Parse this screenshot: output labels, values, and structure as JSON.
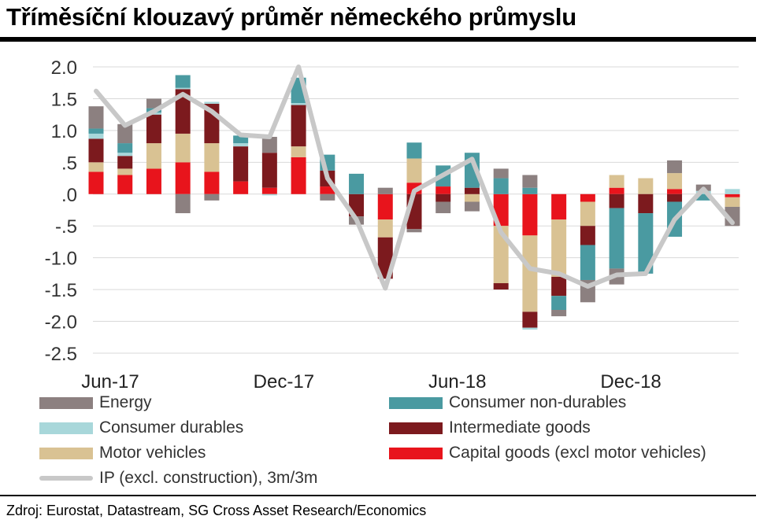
{
  "title": "Tříměsíční klouzavý průměr německého průmyslu",
  "source": "Zdroj: Eurostat, Datastream, SG Cross Asset Research/Economics",
  "chart_data": {
    "type": "bar",
    "stacked": true,
    "title": "Tříměsíční klouzavý průměr německého průmyslu",
    "xlabel": "",
    "ylabel": "",
    "ylim": [
      -2.5,
      2.0
    ],
    "yticks": [
      2.0,
      1.5,
      1.0,
      0.5,
      0.0,
      -0.5,
      -1.0,
      -1.5,
      -2.0,
      -2.5
    ],
    "ytick_labels": [
      "2.0",
      "1.5",
      "1.0",
      ".5",
      ".0",
      "-.5",
      "-1.0",
      "-1.5",
      "-2.0",
      "-2.5"
    ],
    "categories": [
      "Jun-17",
      "Jul-17",
      "Aug-17",
      "Sep-17",
      "Oct-17",
      "Nov-17",
      "Dec-17",
      "Jan-18",
      "Feb-18",
      "Mar-18",
      "Apr-18",
      "May-18",
      "Jun-18",
      "Jul-18",
      "Aug-18",
      "Sep-18",
      "Oct-18",
      "Nov-18",
      "Dec-18",
      "Jan-19",
      "Feb-19",
      "Mar-19",
      "Apr-19"
    ],
    "xtick_labels": [
      {
        "index": 0,
        "label": "Jun-17"
      },
      {
        "index": 6,
        "label": "Dec-17"
      },
      {
        "index": 12,
        "label": "Jun-18"
      },
      {
        "index": 18,
        "label": "Dec-18"
      }
    ],
    "grid": true,
    "legend_position": "bottom",
    "series": [
      {
        "name": "Capital goods (excl motor vehicles)",
        "color": "#e8141c",
        "values": [
          0.35,
          0.3,
          0.4,
          0.5,
          0.35,
          0.2,
          0.1,
          0.58,
          0.12,
          0.0,
          -0.4,
          0.18,
          0.12,
          0.0,
          -0.5,
          -0.65,
          -0.4,
          -0.12,
          0.1,
          0.0,
          0.08,
          0.0,
          -0.05
        ]
      },
      {
        "name": "Motor vehicles",
        "color": "#d9c293",
        "values": [
          0.15,
          0.1,
          0.4,
          0.45,
          0.45,
          0.0,
          0.0,
          0.17,
          0.0,
          0.0,
          -0.28,
          0.38,
          0.0,
          -0.12,
          -0.9,
          -1.2,
          -0.9,
          -0.38,
          0.2,
          0.25,
          0.25,
          0.0,
          -0.15
        ]
      },
      {
        "name": "Intermediate goods",
        "color": "#7c1a1e",
        "values": [
          0.37,
          0.2,
          0.45,
          0.7,
          0.62,
          0.55,
          0.55,
          0.65,
          0.25,
          -0.35,
          -0.65,
          -0.55,
          -0.12,
          0.1,
          -0.1,
          -0.25,
          -0.3,
          -0.3,
          -0.22,
          -0.3,
          -0.12,
          0.0,
          0.0
        ]
      },
      {
        "name": "Consumer durables",
        "color": "#a8d7da",
        "values": [
          0.08,
          0.05,
          0.03,
          0.02,
          0.03,
          0.05,
          -0.02,
          0.03,
          0.0,
          0.0,
          0.0,
          0.0,
          0.0,
          0.0,
          0.0,
          -0.03,
          0.0,
          0.0,
          0.0,
          0.0,
          0.0,
          0.05,
          0.08
        ]
      },
      {
        "name": "Consumer non-durables",
        "color": "#4a9aa1",
        "values": [
          0.08,
          0.15,
          0.07,
          0.2,
          0.0,
          0.12,
          0.0,
          0.4,
          0.25,
          0.32,
          0.0,
          0.25,
          0.33,
          0.55,
          0.25,
          0.1,
          -0.22,
          -0.55,
          -0.95,
          -0.95,
          -0.55,
          -0.1,
          0.0
        ]
      },
      {
        "name": "Energy",
        "color": "#8c8080",
        "values": [
          0.35,
          0.3,
          0.15,
          -0.3,
          -0.1,
          0.0,
          0.25,
          0.0,
          -0.1,
          -0.13,
          0.1,
          -0.05,
          -0.18,
          -0.15,
          0.15,
          0.2,
          -0.1,
          -0.35,
          -0.25,
          0.0,
          0.2,
          0.1,
          -0.3
        ]
      },
      {
        "name": "IP (excl. construction), 3m/3m",
        "color": "#c8c8c8",
        "type": "line",
        "values": [
          1.62,
          1.08,
          1.3,
          1.57,
          1.3,
          0.93,
          0.9,
          2.0,
          0.25,
          -0.4,
          -1.48,
          0.05,
          0.3,
          0.55,
          -0.6,
          -1.17,
          -1.25,
          -1.45,
          -1.27,
          -1.25,
          -0.4,
          0.08,
          -0.45
        ]
      }
    ]
  },
  "legend": [
    {
      "label": "Energy",
      "color": "#8c8080",
      "kind": "swatch"
    },
    {
      "label": "Consumer non-durables",
      "color": "#4a9aa1",
      "kind": "swatch"
    },
    {
      "label": "Consumer durables",
      "color": "#a8d7da",
      "kind": "swatch"
    },
    {
      "label": "Intermediate goods",
      "color": "#7c1a1e",
      "kind": "swatch"
    },
    {
      "label": "Motor vehicles",
      "color": "#d9c293",
      "kind": "swatch"
    },
    {
      "label": "Capital goods (excl motor vehicles)",
      "color": "#e8141c",
      "kind": "swatch"
    },
    {
      "label": "IP (excl. construction), 3m/3m",
      "color": "#c8c8c8",
      "kind": "line"
    }
  ]
}
